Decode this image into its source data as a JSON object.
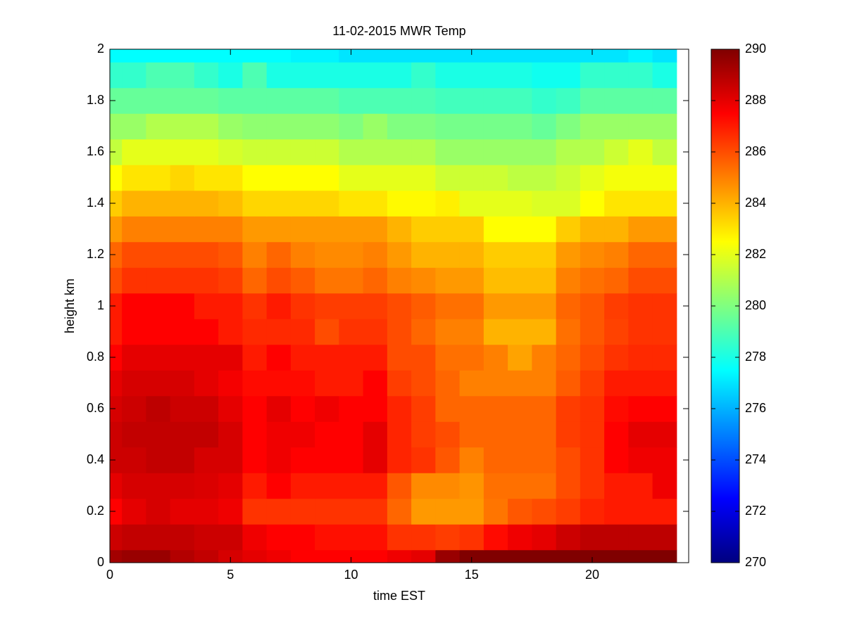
{
  "chart_data": {
    "type": "heatmap",
    "title": "11-02-2015 MWR Temp",
    "x_label": "time EST",
    "y_label": "height km",
    "colormap": "jet",
    "x": [
      0,
      1,
      2,
      3,
      4,
      5,
      6,
      7,
      8,
      9,
      10,
      11,
      12,
      13,
      14,
      15,
      16,
      17,
      18,
      19,
      20,
      21,
      22,
      23
    ],
    "y": [
      0,
      0.1,
      0.2,
      0.3,
      0.4,
      0.5,
      0.6,
      0.7,
      0.8,
      0.9,
      1,
      1.1,
      1.2,
      1.3,
      1.4,
      1.5,
      1.6,
      1.7,
      1.8,
      1.9,
      2
    ],
    "z": [
      [
        289.3,
        289.5,
        289.5,
        289,
        288.7,
        288.3,
        288,
        287.8,
        287.5,
        287.5,
        287.5,
        287.5,
        287.8,
        288,
        289.5,
        290,
        290,
        290,
        290,
        290,
        290,
        290,
        290,
        290
      ],
      [
        288.5,
        288.7,
        288.7,
        288.7,
        288.5,
        288.5,
        287.8,
        287.5,
        287.5,
        287.2,
        287.2,
        287.2,
        286.5,
        286.5,
        286.3,
        286.5,
        287.3,
        287.8,
        288,
        288.5,
        288.8,
        288.8,
        288.8,
        288.8
      ],
      [
        287.5,
        288,
        288.3,
        288,
        288,
        287.8,
        286.5,
        286.5,
        286.5,
        286.5,
        286.5,
        286.5,
        285.5,
        284.5,
        284.5,
        284.5,
        285.2,
        285.8,
        286,
        286.3,
        286.8,
        287,
        287,
        287
      ],
      [
        288,
        288.3,
        288.3,
        288.3,
        288.2,
        288,
        287,
        287.5,
        287,
        287,
        287,
        287,
        285.8,
        284.8,
        284.8,
        284.6,
        285.3,
        285.3,
        285.3,
        286,
        286.5,
        287,
        287,
        287.8
      ],
      [
        288.5,
        288.5,
        288.7,
        288.7,
        288.3,
        288.3,
        287.5,
        287.8,
        287.5,
        287.5,
        287.5,
        288,
        286.8,
        286.5,
        285.8,
        285,
        285.5,
        285.5,
        285.5,
        286,
        286.5,
        287.5,
        287.8,
        287.8
      ],
      [
        288.5,
        288.7,
        288.7,
        288.7,
        288.7,
        288.3,
        287.5,
        287.8,
        287.8,
        287.5,
        287.5,
        288,
        286.8,
        286.3,
        286,
        285.5,
        285.5,
        285.5,
        285.5,
        286.3,
        286.5,
        287.5,
        288,
        288
      ],
      [
        288.3,
        288.5,
        288.8,
        288.5,
        288.5,
        288,
        287.5,
        288,
        287.5,
        287.8,
        287.5,
        287.5,
        286.8,
        286.3,
        285.5,
        285.5,
        285.5,
        285.5,
        285.5,
        286.3,
        286.5,
        287.3,
        287.5,
        287.5
      ],
      [
        288,
        288.3,
        288.3,
        288.3,
        288,
        287.7,
        287.3,
        287.3,
        287.3,
        287,
        287,
        287.5,
        286.3,
        286,
        285.5,
        285,
        285,
        285,
        285,
        285.7,
        286.3,
        287,
        287,
        287
      ],
      [
        287.5,
        288,
        288,
        288,
        288,
        288,
        287,
        287.5,
        287,
        287,
        287,
        287,
        286,
        286,
        285.3,
        285.3,
        285,
        284.3,
        285,
        285.5,
        286,
        286.5,
        286.7,
        286.7
      ],
      [
        287,
        287.5,
        287.5,
        287.5,
        287.5,
        287,
        286.7,
        286.7,
        286.7,
        286,
        286.5,
        286.5,
        286,
        285.5,
        285,
        285,
        284,
        284,
        284,
        285.3,
        285.8,
        286.2,
        286.5,
        286.5
      ],
      [
        287,
        287.5,
        287.5,
        287.5,
        287,
        287,
        286.5,
        287,
        286.5,
        286.3,
        286.3,
        286.3,
        286,
        285.7,
        285.3,
        285.3,
        284.5,
        284.5,
        284.5,
        285.5,
        285.8,
        286.3,
        286.5,
        286.5
      ],
      [
        286,
        286.5,
        286.5,
        286.5,
        286.5,
        286.3,
        285.5,
        286,
        285.7,
        285.2,
        285.2,
        285.5,
        285,
        284.8,
        284.5,
        284.5,
        283.8,
        283.8,
        283.8,
        285,
        285.3,
        285.5,
        286,
        286
      ],
      [
        285.5,
        286,
        286,
        286,
        286,
        285.8,
        285,
        285.5,
        285,
        284.8,
        284.8,
        285,
        284.5,
        284,
        284,
        284,
        283.5,
        283.5,
        283.5,
        284.5,
        284.8,
        285,
        285.5,
        285.5
      ],
      [
        284.5,
        285,
        285,
        285,
        285,
        285,
        284.5,
        284.5,
        284.5,
        284.5,
        284.5,
        284.5,
        284,
        283.5,
        283.5,
        283.5,
        282.5,
        282.5,
        282.5,
        283.5,
        284,
        284,
        284.5,
        284.5
      ],
      [
        283.5,
        284,
        284,
        284,
        284,
        283.8,
        283.3,
        283.3,
        283.3,
        283.3,
        283,
        283,
        282.6,
        282.6,
        282.8,
        282,
        282,
        282,
        281.8,
        281.8,
        282.5,
        283,
        283,
        283
      ],
      [
        282.5,
        283,
        283,
        283.3,
        283,
        283,
        282.5,
        282.5,
        282.5,
        282.5,
        282,
        282,
        282,
        282,
        281.5,
        281.5,
        281.5,
        281.2,
        281.2,
        281.5,
        282,
        282.3,
        282.3,
        282.3
      ],
      [
        281.3,
        282,
        282,
        282,
        282,
        281.7,
        281.5,
        281.5,
        281.5,
        281.5,
        281,
        281,
        281,
        281,
        280.5,
        280.5,
        280.5,
        280.5,
        280.5,
        281,
        281,
        281.5,
        282,
        281.3
      ],
      [
        280.5,
        280.5,
        281,
        281,
        281,
        280.5,
        280.3,
        280.3,
        280.3,
        280.3,
        280,
        280.5,
        280,
        280,
        279.8,
        279.8,
        279.8,
        279.8,
        279.5,
        280,
        280.5,
        280.5,
        280.5,
        280.5
      ],
      [
        279.5,
        279.5,
        279.5,
        279.5,
        279.5,
        279.3,
        279.3,
        279.3,
        279.3,
        279.3,
        279,
        279,
        279,
        279,
        278.8,
        278.8,
        278.8,
        278.8,
        278.5,
        278.7,
        279.3,
        279.3,
        279.3,
        279.3
      ],
      [
        278.5,
        278.5,
        279,
        279,
        278.5,
        278,
        279,
        278,
        278,
        278,
        278,
        278,
        278,
        278.5,
        278,
        278,
        278,
        278,
        277.8,
        277.8,
        278.5,
        278.5,
        278.5,
        278
      ],
      [
        277.5,
        277.5,
        277.5,
        277.5,
        277.5,
        277.5,
        277.5,
        277.5,
        277.3,
        277.3,
        277,
        277,
        277,
        277,
        277,
        277,
        277,
        277,
        277,
        277,
        277,
        277,
        277.3,
        277
      ]
    ],
    "xlim": [
      0,
      24
    ],
    "xticks": [
      0,
      5,
      10,
      15,
      20
    ],
    "ylim": [
      0,
      2
    ],
    "yticks": [
      0,
      0.2,
      0.4,
      0.6,
      0.8,
      1,
      1.2,
      1.4,
      1.6,
      1.8,
      2
    ],
    "clim": [
      270,
      290
    ],
    "cticks": [
      270,
      272,
      274,
      276,
      278,
      280,
      282,
      284,
      286,
      288,
      290
    ]
  }
}
